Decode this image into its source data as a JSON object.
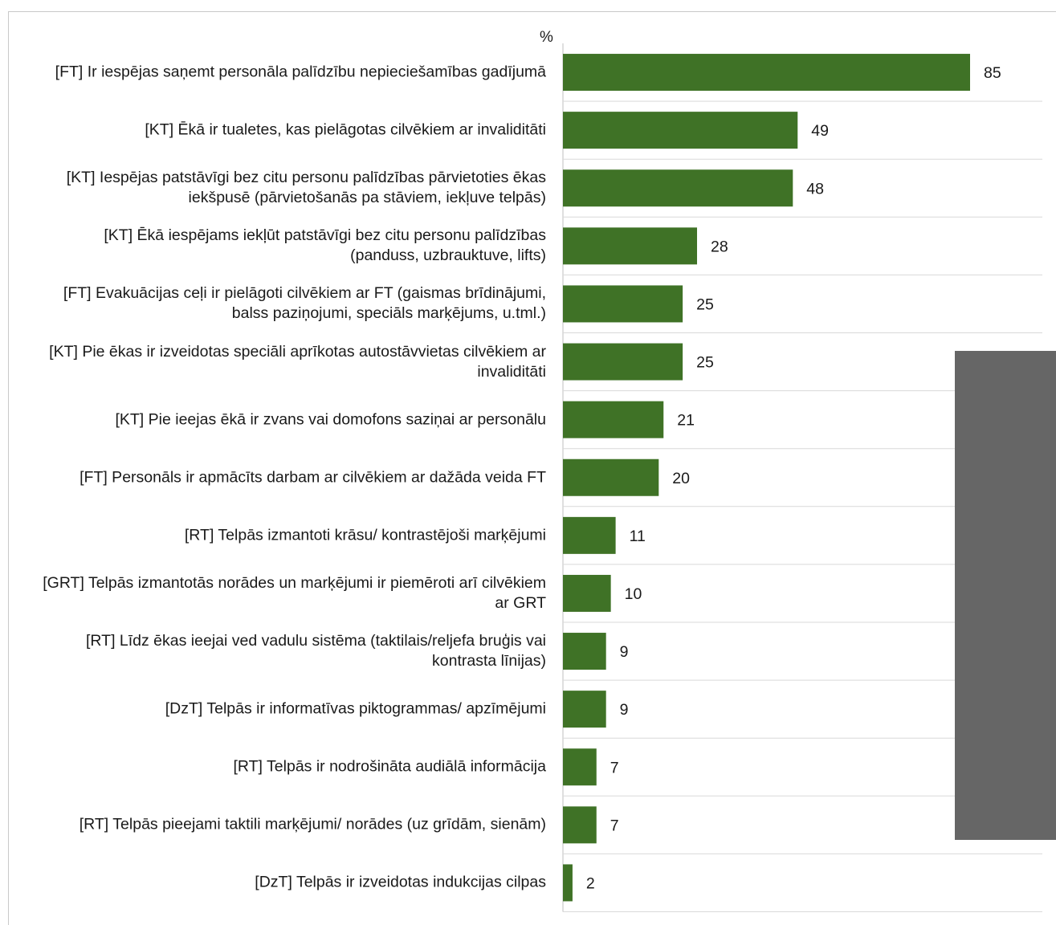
{
  "chart_data": {
    "type": "bar",
    "orientation": "horizontal",
    "unit_label": "%",
    "xlim": [
      0,
      100
    ],
    "grid": true,
    "bar_color": "#3f7226",
    "categories": [
      "[FT] Ir iespējas saņemt personāla palīdzību nepieciešamības gadījumā",
      "[KT] Ēkā ir tualetes, kas pielāgotas cilvēkiem ar invaliditāti",
      "[KT] Iespējas patstāvīgi bez citu personu palīdzības pārvietoties ēkas iekšpusē (pārvietošanās pa stāviem, iekļuve telpās)",
      "[KT] Ēkā iespējams iekļūt patstāvīgi bez citu personu palīdzības (panduss, uzbrauktuve, lifts)",
      "[FT] Evakuācijas ceļi ir pielāgoti cilvēkiem ar FT (gaismas brīdinājumi, balss paziņojumi, speciāls marķējums, u.tml.)",
      "[KT] Pie ēkas ir izveidotas speciāli aprīkotas autostāvvietas cilvēkiem ar invaliditāti",
      "[KT] Pie ieejas ēkā ir zvans vai domofons saziņai ar personālu",
      "[FT] Personāls ir apmācīts darbam ar cilvēkiem ar dažāda veida FT",
      "[RT] Telpās izmantoti krāsu/ kontrastējoši marķējumi",
      "[GRT] Telpās izmantotās norādes un marķējumi ir piemēroti arī cilvēkiem ar GRT",
      "[RT] Līdz ēkas ieejai ved vadulu sistēma (taktilais/reljefa bruģis vai kontrasta līnijas)",
      "[DzT] Telpās ir informatīvas piktogrammas/ apzīmējumi",
      "[RT] Telpās ir nodrošināta audiālā informācija",
      "[RT] Telpās pieejami taktili marķējumi/ norādes (uz grīdām, sienām)",
      "[DzT] Telpās ir izveidotas indukcijas cilpas"
    ],
    "values": [
      85,
      49,
      48,
      28,
      25,
      25,
      21,
      20,
      11,
      10,
      9,
      9,
      7,
      7,
      2
    ]
  }
}
